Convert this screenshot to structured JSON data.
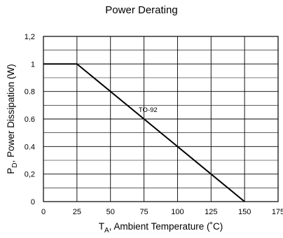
{
  "chart_data": {
    "type": "line",
    "title": "Power Derating",
    "xlabel": {
      "main": "T",
      "sub": "A",
      "rest": ", Ambient Temperature (˚C)"
    },
    "ylabel": {
      "main": "P",
      "sub": "D",
      "rest": ", Power Dissipation (W)"
    },
    "xlim": [
      0,
      175
    ],
    "ylim": [
      0,
      1.2
    ],
    "x_ticks": [
      0,
      25,
      50,
      75,
      100,
      125,
      150,
      175
    ],
    "x_tick_labels": [
      "0",
      "25",
      "50",
      "75",
      "100",
      "125",
      "150",
      "175"
    ],
    "y_ticks": [
      0,
      0.2,
      0.4,
      0.6,
      0.8,
      1,
      1.2
    ],
    "y_tick_labels": [
      "0",
      "0,2",
      "0.4",
      "0.6",
      "0.8",
      "1",
      "1,2"
    ],
    "grid": true,
    "x_minor_per_major": 1,
    "y_minor_per_major": 2,
    "series": [
      {
        "name": "TO-92",
        "x": [
          0,
          25,
          150
        ],
        "y": [
          1,
          1,
          0
        ],
        "color": "#000000"
      }
    ],
    "annotations": [
      {
        "text": "TO-92",
        "x": 78,
        "y": 0.65
      }
    ]
  }
}
